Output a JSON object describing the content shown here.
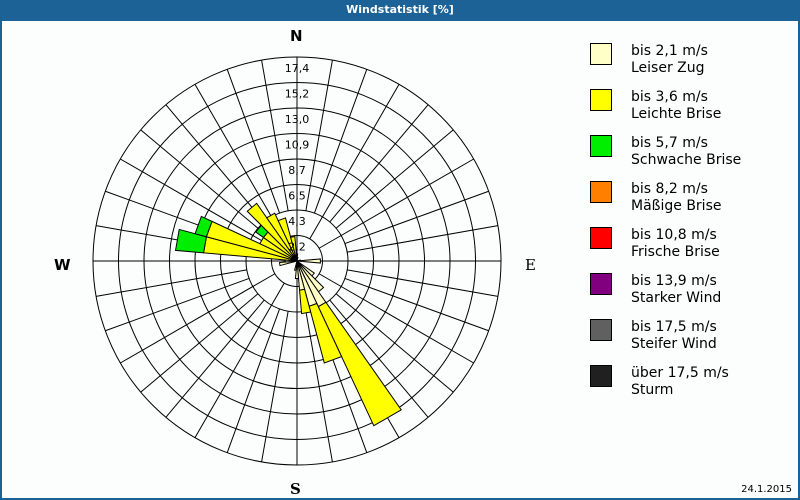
{
  "window": {
    "title": "Windstatistik [%]",
    "date": "24.1.2015"
  },
  "compass": {
    "N": "N",
    "E": "E",
    "S": "S",
    "W": "W"
  },
  "legend": [
    {
      "range": "bis 2,1 m/s",
      "name": "Leiser Zug",
      "color": "#ffffc8"
    },
    {
      "range": "bis 3,6 m/s",
      "name": "Leichte Brise",
      "color": "#ffff00"
    },
    {
      "range": "bis 5,7 m/s",
      "name": "Schwache Brise",
      "color": "#00ee00"
    },
    {
      "range": "bis 8,2 m/s",
      "name": "Mäßige Brise",
      "color": "#ff8000"
    },
    {
      "range": "bis 10,8 m/s",
      "name": "Frische Brise",
      "color": "#ff0000"
    },
    {
      "range": "bis 13,9 m/s",
      "name": "Starker Wind",
      "color": "#800080"
    },
    {
      "range": "bis 17,5 m/s",
      "name": "Steifer Wind",
      "color": "#606060"
    },
    {
      "range": "über 17,5 m/s",
      "name": "Sturm",
      "color": "#202020"
    }
  ],
  "chart_data": {
    "type": "wind-rose",
    "title": "Windstatistik [%]",
    "unit": "%",
    "radial_ticks": [
      "2,2",
      "4,3",
      "6,5",
      "8,7",
      "10,9",
      "13,0",
      "15,2",
      "17,4"
    ],
    "rmax": 17.4,
    "sector_width_deg": 10,
    "series_names": [
      "bis 2,1 m/s",
      "bis 3,6 m/s",
      "bis 5,7 m/s"
    ],
    "sectors": [
      {
        "dir": 0,
        "values": [
          0.3,
          0.3,
          0
        ]
      },
      {
        "dir": 10,
        "values": [
          0.3,
          0,
          0
        ]
      },
      {
        "dir": 80,
        "values": [
          0.3,
          0,
          0
        ]
      },
      {
        "dir": 90,
        "values": [
          2.0,
          0,
          0
        ]
      },
      {
        "dir": 130,
        "values": [
          1.8,
          0,
          0
        ]
      },
      {
        "dir": 140,
        "values": [
          3.2,
          0,
          0
        ]
      },
      {
        "dir": 150,
        "values": [
          4.3,
          11.2,
          0
        ]
      },
      {
        "dir": 160,
        "values": [
          4.0,
          5.0,
          0
        ]
      },
      {
        "dir": 170,
        "values": [
          2.5,
          2.0,
          0
        ]
      },
      {
        "dir": 180,
        "values": [
          1.5,
          0,
          0
        ]
      },
      {
        "dir": 190,
        "values": [
          0.8,
          0,
          0
        ]
      },
      {
        "dir": 260,
        "values": [
          1.5,
          0,
          0
        ]
      },
      {
        "dir": 270,
        "values": [
          1.0,
          0,
          0
        ]
      },
      {
        "dir": 280,
        "values": [
          0.5,
          7.5,
          2.4
        ]
      },
      {
        "dir": 290,
        "values": [
          0.5,
          7.5,
          1.0
        ]
      },
      {
        "dir": 300,
        "values": [
          0.5,
          3.0,
          0
        ]
      },
      {
        "dir": 310,
        "values": [
          0.5,
          3.0,
          0.8
        ]
      },
      {
        "dir": 320,
        "values": [
          0.5,
          5.5,
          0
        ]
      },
      {
        "dir": 330,
        "values": [
          0.5,
          4.0,
          0
        ]
      },
      {
        "dir": 340,
        "values": [
          0.5,
          3.3,
          0
        ]
      },
      {
        "dir": 350,
        "values": [
          0.3,
          1.8,
          0
        ]
      }
    ]
  }
}
